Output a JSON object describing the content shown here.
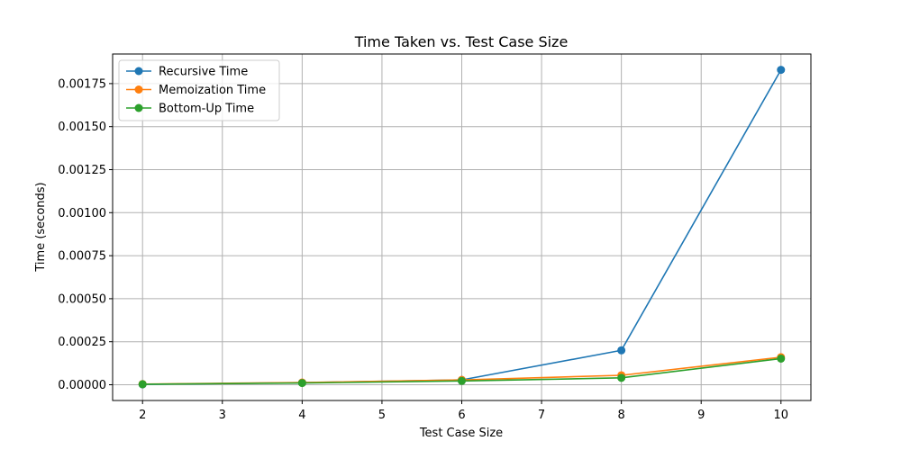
{
  "chart_data": {
    "type": "line",
    "title": "Time Taken vs. Test Case Size",
    "xlabel": "Test Case Size",
    "ylabel": "Time (seconds)",
    "x": [
      2,
      4,
      6,
      8,
      10
    ],
    "xlim": [
      1.625,
      10.375
    ],
    "ylim": [
      -9.15e-05,
      0.001922
    ],
    "xticks": [
      "2",
      "3",
      "4",
      "5",
      "6",
      "7",
      "8",
      "9",
      "10"
    ],
    "xtick_values": [
      2,
      3,
      4,
      5,
      6,
      7,
      8,
      9,
      10
    ],
    "yticks": [
      "0.00000",
      "0.00025",
      "0.00050",
      "0.00075",
      "0.00100",
      "0.00125",
      "0.00150",
      "0.00175"
    ],
    "ytick_values": [
      0,
      0.00025,
      0.0005,
      0.00075,
      0.001,
      0.00125,
      0.0015,
      0.00175
    ],
    "grid": true,
    "legend_position": "top-left",
    "series": [
      {
        "name": "Recursive Time",
        "color": "#1f77b4",
        "values": [
          2e-06,
          1.2e-05,
          2.8e-05,
          0.0002,
          0.00183
        ]
      },
      {
        "name": "Memoization Time",
        "color": "#ff7f0e",
        "values": [
          4e-06,
          1.3e-05,
          2.8e-05,
          5.5e-05,
          0.00016
        ]
      },
      {
        "name": "Bottom-Up Time",
        "color": "#2ca02c",
        "values": [
          3e-06,
          1e-05,
          2.2e-05,
          4e-05,
          0.000152
        ]
      }
    ]
  }
}
